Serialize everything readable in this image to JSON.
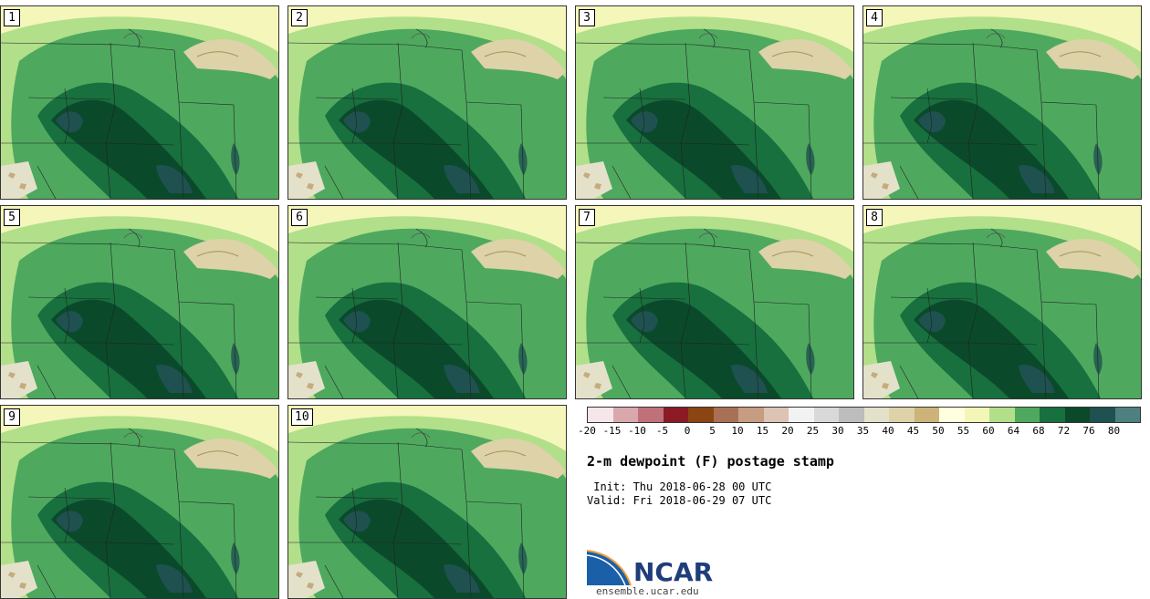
{
  "stamps": [
    "1",
    "2",
    "3",
    "4",
    "5",
    "6",
    "7",
    "8",
    "9",
    "10"
  ],
  "colorbar": {
    "colors": [
      "#f5e6ea",
      "#d9a8ad",
      "#c07079",
      "#8b1a25",
      "#8b4513",
      "#a87155",
      "#c69c82",
      "#dcc3b3",
      "#f2f2f2",
      "#d9d9d9",
      "#bdbdbd",
      "#e4e1cb",
      "#ddd2a8",
      "#cbb37a",
      "#ffffe0",
      "#f3f6b6",
      "#b2df8a",
      "#4ea95f",
      "#18703e",
      "#0a4a2b",
      "#1f5150",
      "#4f8080"
    ],
    "ticks": [
      "-20",
      "-15",
      "-10",
      "-5",
      "0",
      "5",
      "10",
      "15",
      "20",
      "25",
      "30",
      "35",
      "40",
      "45",
      "50",
      "55",
      "60",
      "64",
      "68",
      "72",
      "76",
      "80"
    ]
  },
  "title": "2-m dewpoint (F) postage stamp",
  "init": " Init: Thu 2018-06-28 00 UTC",
  "valid": "Valid: Fri 2018-06-29 07 UTC",
  "logo": {
    "name": "NCAR",
    "url": "ensemble.ucar.edu"
  }
}
